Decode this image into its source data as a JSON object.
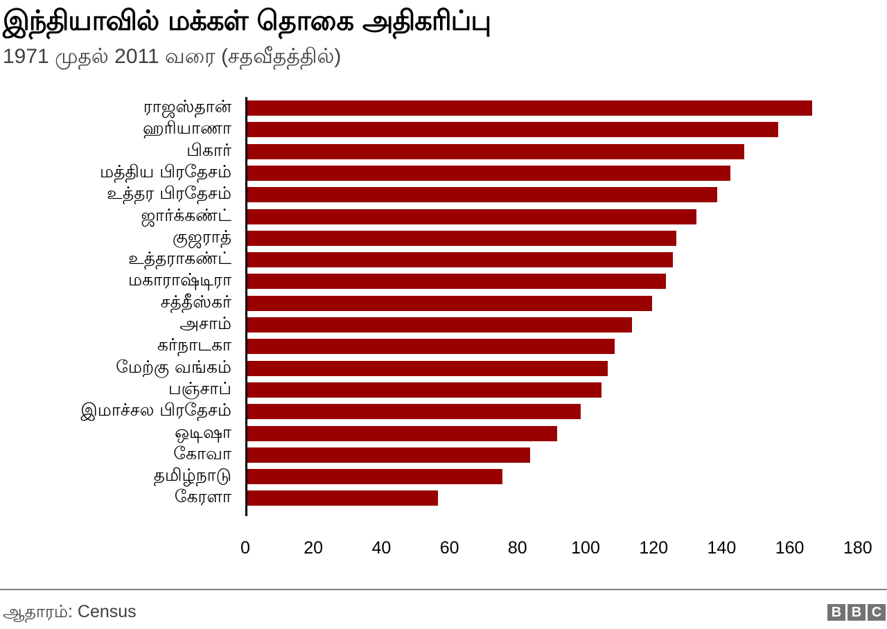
{
  "header": {
    "title": "இந்தியாவில் மக்கள் தொகை அதிகரிப்பு",
    "subtitle": "1971 முதல் 2011 வரை (சதவீதத்தில்)"
  },
  "footer": {
    "source": "ஆதாரம்: Census",
    "logo": [
      "B",
      "B",
      "C"
    ]
  },
  "colors": {
    "bar": "#990000",
    "axis": "#000000",
    "rule": "#808080",
    "logo": "#737373"
  },
  "chart_data": {
    "type": "bar",
    "orientation": "horizontal",
    "title": "இந்தியாவில் மக்கள் தொகை அதிகரிப்பு",
    "subtitle": "1971 முதல் 2011 வரை (சதவீதத்தில்)",
    "xlabel": "",
    "ylabel": "",
    "xlim": [
      0,
      180
    ],
    "xticks": [
      "0",
      "20",
      "40",
      "60",
      "80",
      "100",
      "120",
      "140",
      "160",
      "180"
    ],
    "grid": false,
    "legend": null,
    "categories": [
      "ராஜஸ்தான்",
      "ஹரியாணா",
      "பிகார்",
      "மத்திய பிரதேசம்",
      "உத்தர பிரதேசம்",
      "ஜார்க்கண்ட்",
      "குஜராத்",
      "உத்தராகண்ட்",
      "மகாராஷ்டிரா",
      "சத்தீஸ்கர்",
      "அசாம்",
      "கர்நாடகா",
      "மேற்கு வங்கம்",
      "பஞ்சாப்",
      "இமாச்சல பிரதேசம்",
      "ஒடிஷா",
      "கோவா",
      "தமிழ்நாடு",
      "கேரளா"
    ],
    "values": [
      166,
      156,
      146,
      142,
      138,
      132,
      126,
      125,
      123,
      119,
      113,
      108,
      106,
      104,
      98,
      91,
      83,
      75,
      56
    ],
    "source": "ஆதாரம்: Census"
  }
}
